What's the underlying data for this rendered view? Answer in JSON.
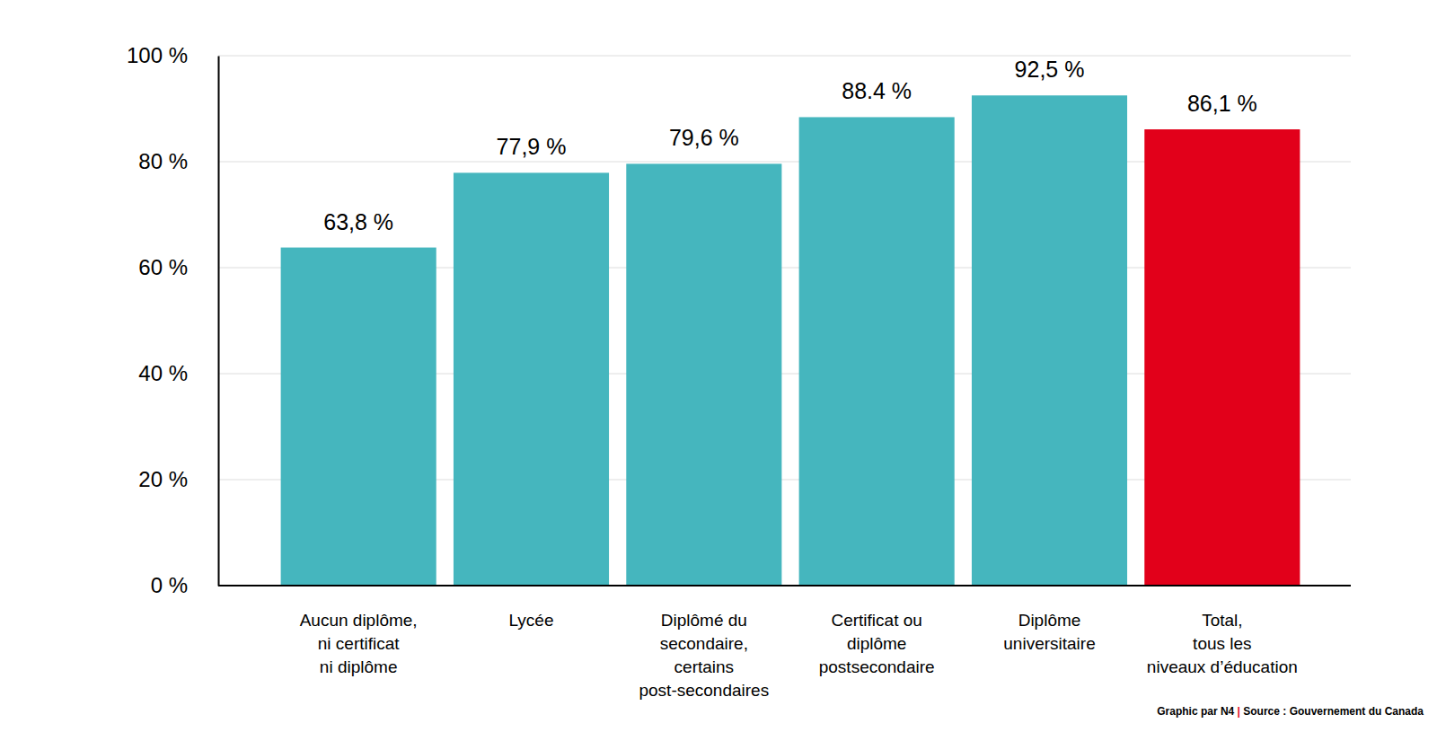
{
  "chart_data": {
    "type": "bar",
    "categories": [
      "Aucun diplôme,\nni certificat\nni diplôme",
      "Lycée",
      "Diplômé du\nsecondaire,\ncertains\npost-secondaires",
      "Certificat ou\ndiplôme\npostsecondaire",
      "Diplôme\nuniversitaire",
      "Total,\ntous les\nniveaux d’éducation"
    ],
    "values": [
      63.8,
      77.9,
      79.6,
      88.4,
      92.5,
      86.1
    ],
    "value_labels": [
      "63,8 %",
      "77,9 %",
      "79,6 %",
      "88.4 %",
      "92,5 %",
      "86,1 %"
    ],
    "colors": [
      "#45b6be",
      "#45b6be",
      "#45b6be",
      "#45b6be",
      "#45b6be",
      "#e2001a"
    ],
    "ylim": [
      0,
      100
    ],
    "yticks": [
      {
        "value": 0,
        "label": "0 %"
      },
      {
        "value": 20,
        "label": "20 %"
      },
      {
        "value": 40,
        "label": "40 %"
      },
      {
        "value": 60,
        "label": "60 %"
      },
      {
        "value": 80,
        "label": "80 %"
      },
      {
        "value": 100,
        "label": "100 %"
      }
    ],
    "grid": true,
    "data_labels": true,
    "annotations": [
      "Graphic par N4 | Source : Gouvernement du Canada"
    ]
  }
}
